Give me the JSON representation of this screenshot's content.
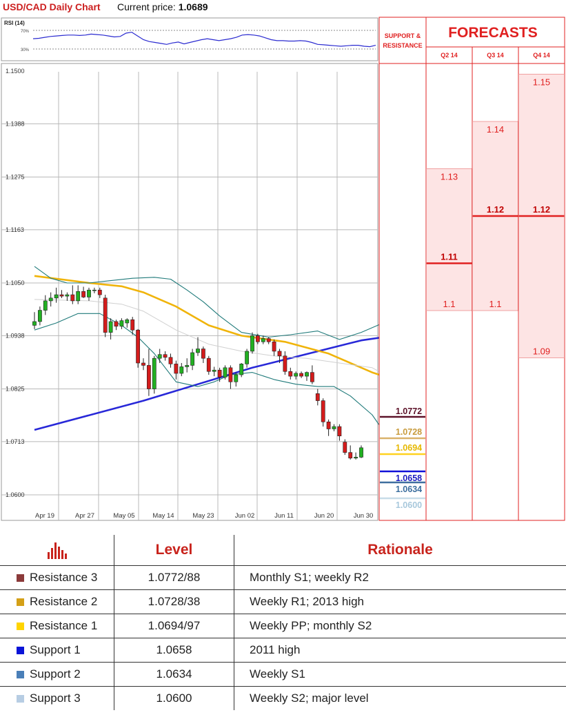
{
  "header": {
    "title": "USD/CAD Daily Chart",
    "price_label": "Current price:",
    "price_value": "1.0689"
  },
  "rsi": {
    "label": "RSI (14)",
    "levels": [
      "70%",
      "30%"
    ],
    "upper": 70,
    "lower": 30,
    "values": [
      52,
      53,
      55,
      57,
      58,
      59,
      60,
      60,
      59,
      60,
      62,
      61,
      60,
      58,
      56,
      57,
      64,
      66,
      58,
      50,
      46,
      44,
      42,
      40,
      43,
      45,
      41,
      44,
      47,
      50,
      52,
      50,
      48,
      50,
      52,
      55,
      60,
      61,
      60,
      58,
      54,
      50,
      48,
      48,
      47,
      47,
      48,
      47,
      44,
      40,
      39,
      38,
      37,
      36,
      37,
      38,
      38,
      36,
      35,
      38
    ]
  },
  "chart_data": {
    "type": "candlestick",
    "title": "USD/CAD Daily Chart",
    "y_ticks": [
      "1.1500",
      "1.1388",
      "1.1275",
      "1.1163",
      "1.1050",
      "1.0938",
      "1.0825",
      "1.0713",
      "1.0600"
    ],
    "ylim": [
      1.0575,
      1.15
    ],
    "x_ticks": [
      "Apr 19",
      "Apr 27",
      "May 05",
      "May 14",
      "May 23",
      "Jun 02",
      "Jun 11",
      "Jun 20",
      "Jun 30"
    ],
    "grid": true,
    "candles": [
      [
        1.096,
        1.0988,
        1.0952,
        1.0968
      ],
      [
        1.0968,
        1.1,
        1.096,
        1.0992
      ],
      [
        1.0992,
        1.1024,
        1.0982,
        1.1012
      ],
      [
        1.1012,
        1.103,
        1.1,
        1.1018
      ],
      [
        1.1018,
        1.104,
        1.1008,
        1.1025
      ],
      [
        1.1025,
        1.1035,
        1.1018,
        1.1022
      ],
      [
        1.1022,
        1.103,
        1.1012,
        1.1025
      ],
      [
        1.1025,
        1.1045,
        1.1005,
        1.1012
      ],
      [
        1.1012,
        1.1045,
        1.1005,
        1.1032
      ],
      [
        1.1032,
        1.1042,
        1.1018,
        1.102
      ],
      [
        1.102,
        1.104,
        1.1012,
        1.1035
      ],
      [
        1.1035,
        1.104,
        1.1028,
        1.1035
      ],
      [
        1.1035,
        1.104,
        1.1018,
        1.1025
      ],
      [
        1.1018,
        1.1025,
        1.0935,
        1.0945
      ],
      [
        1.0945,
        1.0975,
        1.093,
        1.0968
      ],
      [
        1.0968,
        1.0972,
        1.095,
        1.0958
      ],
      [
        1.0958,
        1.0975,
        1.0952,
        1.097
      ],
      [
        1.0965,
        1.0975,
        1.0955,
        1.0972
      ],
      [
        1.0972,
        1.0978,
        1.094,
        1.095
      ],
      [
        1.095,
        1.0952,
        1.087,
        1.088
      ],
      [
        1.088,
        1.089,
        1.0865,
        1.0875
      ],
      [
        1.0875,
        1.091,
        1.081,
        1.0825
      ],
      [
        1.0825,
        1.0895,
        1.0815,
        1.089
      ],
      [
        1.089,
        1.091,
        1.088,
        1.0898
      ],
      [
        1.0898,
        1.0905,
        1.0885,
        1.0892
      ],
      [
        1.0892,
        1.09,
        1.087,
        1.0878
      ],
      [
        1.0878,
        1.0885,
        1.0845,
        1.0858
      ],
      [
        1.0858,
        1.088,
        1.0852,
        1.0872
      ],
      [
        1.0872,
        1.089,
        1.086,
        1.0875
      ],
      [
        1.0875,
        1.091,
        1.0865,
        1.0902
      ],
      [
        1.0902,
        1.0935,
        1.0895,
        1.091
      ],
      [
        1.091,
        1.0915,
        1.088,
        1.089
      ],
      [
        1.089,
        1.0895,
        1.0855,
        1.0862
      ],
      [
        1.0862,
        1.0872,
        1.0852,
        1.0865
      ],
      [
        1.0865,
        1.087,
        1.084,
        1.085
      ],
      [
        1.085,
        1.0875,
        1.0845,
        1.087
      ],
      [
        1.087,
        1.0875,
        1.0825,
        1.084
      ],
      [
        1.084,
        1.086,
        1.083,
        1.0855
      ],
      [
        1.0855,
        1.088,
        1.085,
        1.0878
      ],
      [
        1.0878,
        1.091,
        1.087,
        1.0905
      ],
      [
        1.0905,
        1.0945,
        1.09,
        1.0938
      ],
      [
        1.0938,
        1.0942,
        1.092,
        1.0925
      ],
      [
        1.0925,
        1.0938,
        1.092,
        1.0932
      ],
      [
        1.0932,
        1.0935,
        1.092,
        1.0925
      ],
      [
        1.0925,
        1.093,
        1.0895,
        1.0905
      ],
      [
        1.0905,
        1.091,
        1.088,
        1.0895
      ],
      [
        1.0895,
        1.0905,
        1.0855,
        1.0862
      ],
      [
        1.0862,
        1.087,
        1.0845,
        1.0852
      ],
      [
        1.0852,
        1.0862,
        1.0845,
        1.0858
      ],
      [
        1.0858,
        1.0862,
        1.0848,
        1.0852
      ],
      [
        1.0852,
        1.0862,
        1.0842,
        1.086
      ],
      [
        1.086,
        1.0875,
        1.0835,
        1.084
      ],
      [
        1.0815,
        1.0825,
        1.079,
        1.08
      ],
      [
        1.08,
        1.0805,
        1.0745,
        1.0755
      ],
      [
        1.0755,
        1.076,
        1.0725,
        1.074
      ],
      [
        1.074,
        1.075,
        1.0735,
        1.0745
      ],
      [
        1.0745,
        1.075,
        1.0715,
        1.0725
      ],
      [
        1.0712,
        1.0718,
        1.0685,
        1.069
      ],
      [
        1.069,
        1.0705,
        1.0675,
        1.0678
      ],
      [
        1.0678,
        1.069,
        1.0675,
        1.068
      ],
      [
        1.068,
        1.0705,
        1.0678,
        1.07
      ]
    ],
    "overlays": [
      {
        "name": "ma_slow",
        "color": "#2828d8",
        "values": [
          [
            0,
            1.0738
          ],
          [
            20,
            1.08
          ],
          [
            40,
            1.087
          ],
          [
            60,
            1.0928
          ],
          [
            66,
            1.0938
          ],
          [
            70,
            1.0938
          ]
        ]
      },
      {
        "name": "ma_fast",
        "color": "#f0b40a",
        "values": [
          [
            0,
            1.1065
          ],
          [
            10,
            1.105
          ],
          [
            16,
            1.1043
          ],
          [
            20,
            1.103
          ],
          [
            26,
            1.1
          ],
          [
            32,
            1.096
          ],
          [
            38,
            1.0938
          ],
          [
            46,
            1.0925
          ],
          [
            54,
            1.09
          ],
          [
            62,
            1.086
          ],
          [
            66,
            1.0845
          ],
          [
            70,
            1.0855
          ]
        ]
      },
      {
        "name": "bb_upper",
        "color": "#1f7a7a",
        "values": [
          [
            0,
            1.1085
          ],
          [
            3,
            1.106
          ],
          [
            6,
            1.105
          ],
          [
            10,
            1.105
          ],
          [
            14,
            1.1055
          ],
          [
            18,
            1.106
          ],
          [
            22,
            1.1062
          ],
          [
            25,
            1.1058
          ],
          [
            28,
            1.1035
          ],
          [
            31,
            1.101
          ],
          [
            34,
            1.098
          ],
          [
            38,
            1.0945
          ],
          [
            43,
            1.0935
          ],
          [
            47,
            1.094
          ],
          [
            52,
            1.0948
          ],
          [
            56,
            1.093
          ],
          [
            60,
            1.0945
          ],
          [
            64,
            1.0965
          ],
          [
            67,
            1.097
          ],
          [
            70,
            1.0955
          ]
        ]
      },
      {
        "name": "bb_lower",
        "color": "#1f7a7a",
        "values": [
          [
            0,
            1.095
          ],
          [
            4,
            1.0965
          ],
          [
            8,
            1.0985
          ],
          [
            12,
            1.0985
          ],
          [
            16,
            1.096
          ],
          [
            19,
            1.0935
          ],
          [
            22,
            1.09
          ],
          [
            26,
            1.084
          ],
          [
            30,
            1.083
          ],
          [
            33,
            1.084
          ],
          [
            36,
            1.0855
          ],
          [
            40,
            1.086
          ],
          [
            44,
            1.0845
          ],
          [
            48,
            1.0835
          ],
          [
            52,
            1.083
          ],
          [
            55,
            1.083
          ],
          [
            58,
            1.081
          ],
          [
            62,
            1.077
          ],
          [
            65,
            1.072
          ],
          [
            68,
            1.069
          ],
          [
            70,
            1.066
          ]
        ]
      },
      {
        "name": "bb_mid",
        "color": "#d0d0d0",
        "values": [
          [
            0,
            1.1015
          ],
          [
            10,
            1.1012
          ],
          [
            16,
            1.1005
          ],
          [
            20,
            1.099
          ],
          [
            26,
            1.095
          ],
          [
            32,
            1.092
          ],
          [
            38,
            1.0905
          ],
          [
            44,
            1.0895
          ],
          [
            50,
            1.089
          ],
          [
            56,
            1.088
          ],
          [
            62,
            1.087
          ],
          [
            66,
            1.0845
          ],
          [
            70,
            1.081
          ]
        ]
      }
    ]
  },
  "sr": {
    "title_line1": "SUPPORT &",
    "title_line2": "RESISTANCE",
    "levels": [
      {
        "label": "1.0772",
        "value": 1.0772,
        "color": "#5c1228",
        "line": "#5c1228"
      },
      {
        "label": "1.0728",
        "value": 1.0728,
        "color": "#c89b3c",
        "line": "#d9b26a"
      },
      {
        "label": "1.0694",
        "value": 1.0694,
        "color": "#e6b800",
        "line": "#ffd21f"
      },
      {
        "label": "1.0658",
        "value": 1.0658,
        "color": "#1c1cc0",
        "line": "#1010d8"
      },
      {
        "label": "1.0634",
        "value": 1.0634,
        "color": "#3b6e9e",
        "line": "#3f6f9f"
      },
      {
        "label": "1.0600",
        "value": 1.06,
        "color": "#a8c8dc",
        "line": "#c7dce8"
      }
    ]
  },
  "forecasts": {
    "title": "FORECASTS",
    "columns": [
      {
        "quarter": "Q2 14",
        "high": 1.13,
        "low": 1.1,
        "high_label": "1.13",
        "mid_label": "1.11",
        "low_label": "1.1",
        "mid": 1.11
      },
      {
        "quarter": "Q3 14",
        "high": 1.14,
        "low": 1.1,
        "high_label": "1.14",
        "mid_label": "1.12",
        "low_label": "1.1",
        "mid": 1.12
      },
      {
        "quarter": "Q4 14",
        "high": 1.15,
        "low": 1.09,
        "high_label": "1.15",
        "mid_label": "1.12",
        "low_label": "1.09",
        "mid": 1.12
      }
    ]
  },
  "legend": {
    "headers": {
      "level": "Level",
      "rationale": "Rationale"
    },
    "rows": [
      {
        "name": "Resistance 3",
        "color": "#8b3a3a",
        "level": "1.0772/88",
        "rationale": "Monthly S1; weekly R2"
      },
      {
        "name": "Resistance 2",
        "color": "#d4a017",
        "level": "1.0728/38",
        "rationale": "Weekly R1; 2013 high"
      },
      {
        "name": "Resistance 1",
        "color": "#ffd400",
        "level": "1.0694/97",
        "rationale": "Weekly PP; monthly S2"
      },
      {
        "name": "Support 1",
        "color": "#0a14d8",
        "level": "1.0658",
        "rationale": "2011 high"
      },
      {
        "name": "Support 2",
        "color": "#4a7fb8",
        "level": "1.0634",
        "rationale": "Weekly S1"
      },
      {
        "name": "Support 3",
        "color": "#b7cde3",
        "level": "1.0600",
        "rationale": "Weekly S2; major level"
      }
    ]
  },
  "colors": {
    "red": "#e02020",
    "bull": "#22b022",
    "bear": "#d41c1c",
    "forecast_fill": "#fde4e4"
  }
}
